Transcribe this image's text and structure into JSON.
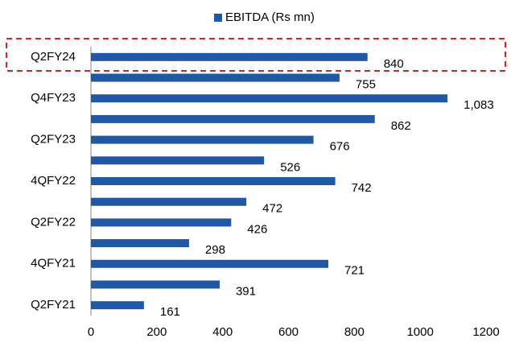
{
  "chart_data": {
    "type": "barh",
    "legend": "EBITDA (Rs mn)",
    "categories": [
      "Q2FY24",
      null,
      "Q4FY23",
      null,
      "Q2FY23",
      null,
      "4QFY22",
      null,
      "Q2FY22",
      null,
      "4QFY21",
      null,
      "Q2FY21"
    ],
    "series": [
      {
        "name": "EBITDA (Rs mn)",
        "color": "#2158a4",
        "values": [
          840,
          755,
          1083,
          862,
          676,
          526,
          742,
          472,
          426,
          298,
          721,
          391,
          161
        ],
        "value_labels": [
          "840",
          "755",
          "1,083",
          "862",
          "676",
          "526",
          "742",
          "472",
          "426",
          "298",
          "721",
          "391",
          "161"
        ]
      }
    ],
    "xlim": [
      0,
      1200
    ],
    "xticks": [
      0,
      200,
      400,
      600,
      800,
      1000,
      1200
    ]
  }
}
